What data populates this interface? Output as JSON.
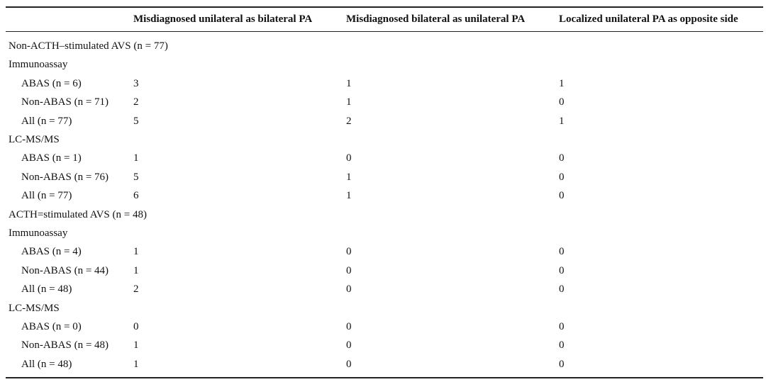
{
  "table": {
    "header": [
      "Misdiagnosed unilateral as bilateral PA",
      "Misdiagnosed bilateral as unilateral PA",
      "Localized unilateral PA as opposite side"
    ],
    "rows": [
      {
        "label": "Non-ACTH–stimulated AVS (n = 77)"
      },
      {
        "label": "Immunoassay"
      },
      {
        "label": "ABAS (n = 6)",
        "values": [
          3,
          1,
          1
        ]
      },
      {
        "label": "Non-ABAS (n = 71)",
        "values": [
          2,
          1,
          0
        ]
      },
      {
        "label": "All (n = 77)",
        "values": [
          5,
          2,
          1
        ]
      },
      {
        "label": "LC-MS/MS"
      },
      {
        "label": "ABAS (n = 1)",
        "values": [
          1,
          0,
          0
        ]
      },
      {
        "label": "Non-ABAS (n = 76)",
        "values": [
          5,
          1,
          0
        ]
      },
      {
        "label": "All (n = 77)",
        "values": [
          6,
          1,
          0
        ]
      },
      {
        "label": "ACTH=stimulated AVS (n = 48)"
      },
      {
        "label": "Immunoassay"
      },
      {
        "label": "ABAS (n = 4)",
        "values": [
          1,
          0,
          0
        ]
      },
      {
        "label": "Non-ABAS (n = 44)",
        "values": [
          1,
          0,
          0
        ]
      },
      {
        "label": "All (n = 48)",
        "values": [
          2,
          0,
          0
        ]
      },
      {
        "label": "LC-MS/MS"
      },
      {
        "label": "ABAS (n = 0)",
        "values": [
          0,
          0,
          0
        ]
      },
      {
        "label": "Non-ABAS (n = 48)",
        "values": [
          1,
          0,
          0
        ]
      },
      {
        "label": "All (n = 48)",
        "values": [
          1,
          0,
          0
        ]
      }
    ]
  }
}
